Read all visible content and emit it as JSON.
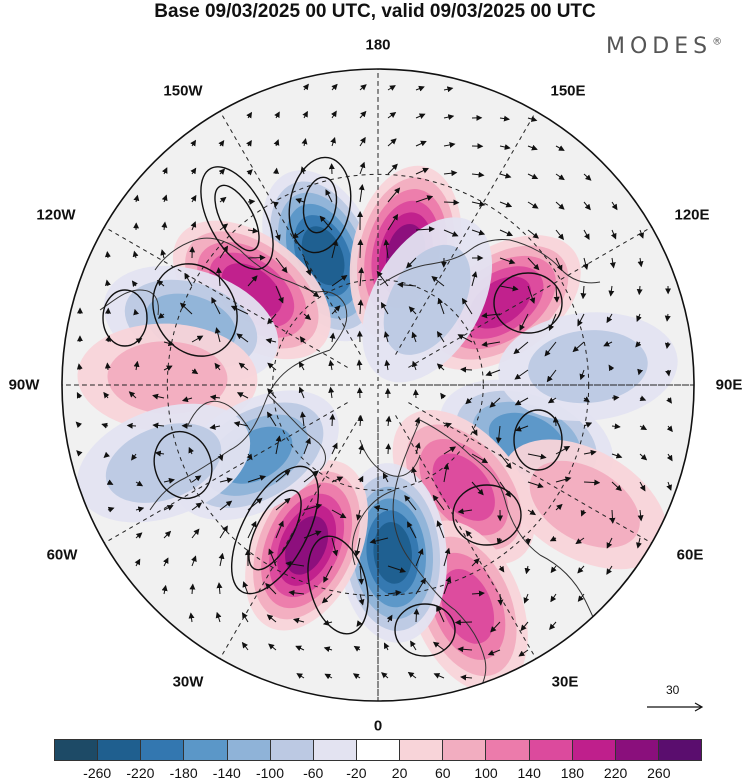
{
  "title": "Base 09/03/2025 00 UTC, valid 09/03/2025 00 UTC",
  "logo": "MODES",
  "logo_mark": "®",
  "longitude_labels": {
    "top": "180",
    "top_left": "150W",
    "top_right": "150E",
    "upper_left": "120W",
    "upper_right": "120E",
    "left": "90W",
    "right": "90E",
    "lower_left": "60W",
    "lower_right": "60E",
    "bottom_left": "30W",
    "bottom_right": "30E",
    "bottom": "0"
  },
  "reference_vector": {
    "label": "30",
    "arrow": "arrow-right-icon"
  },
  "colorbar": {
    "colors": [
      "#1d4a66",
      "#1f5f8f",
      "#3377b0",
      "#5b97c8",
      "#8fb3d8",
      "#bcc9e3",
      "#e3e3f1",
      "#ffffff",
      "#f8d4d9",
      "#f2adc0",
      "#ec7bab",
      "#dc4a9d",
      "#bf1f8c",
      "#8a0f7c",
      "#5a0d6e"
    ],
    "ticks": [
      "-260",
      "-220",
      "-180",
      "-140",
      "-100",
      "-60",
      "-20",
      "20",
      "60",
      "100",
      "140",
      "180",
      "220",
      "260"
    ]
  },
  "anomalies": [
    {
      "lon": -157,
      "lat": 50,
      "value": -240
    },
    {
      "lon": 168,
      "lat": 52,
      "value": 250
    },
    {
      "lon": -127,
      "lat": 45,
      "value": 200
    },
    {
      "lon": -108,
      "lat": 34,
      "value": -110
    },
    {
      "lon": -92,
      "lat": 30,
      "value": 70
    },
    {
      "lon": 124,
      "lat": 48,
      "value": 200
    },
    {
      "lon": 70,
      "lat": 45,
      "value": -150
    },
    {
      "lon": 60,
      "lat": 22,
      "value": 90
    },
    {
      "lon": 40,
      "lat": 52,
      "value": 170
    },
    {
      "lon": 22,
      "lat": 22,
      "value": 140
    },
    {
      "lon": 5,
      "lat": 42,
      "value": -220
    },
    {
      "lon": -24,
      "lat": 40,
      "value": 250
    },
    {
      "lon": -60,
      "lat": 50,
      "value": -150
    },
    {
      "lon": 150,
      "lat": 62,
      "value": -80
    },
    {
      "lon": 95,
      "lat": 30,
      "value": -60
    },
    {
      "lon": -70,
      "lat": 25,
      "value": -60
    }
  ]
}
